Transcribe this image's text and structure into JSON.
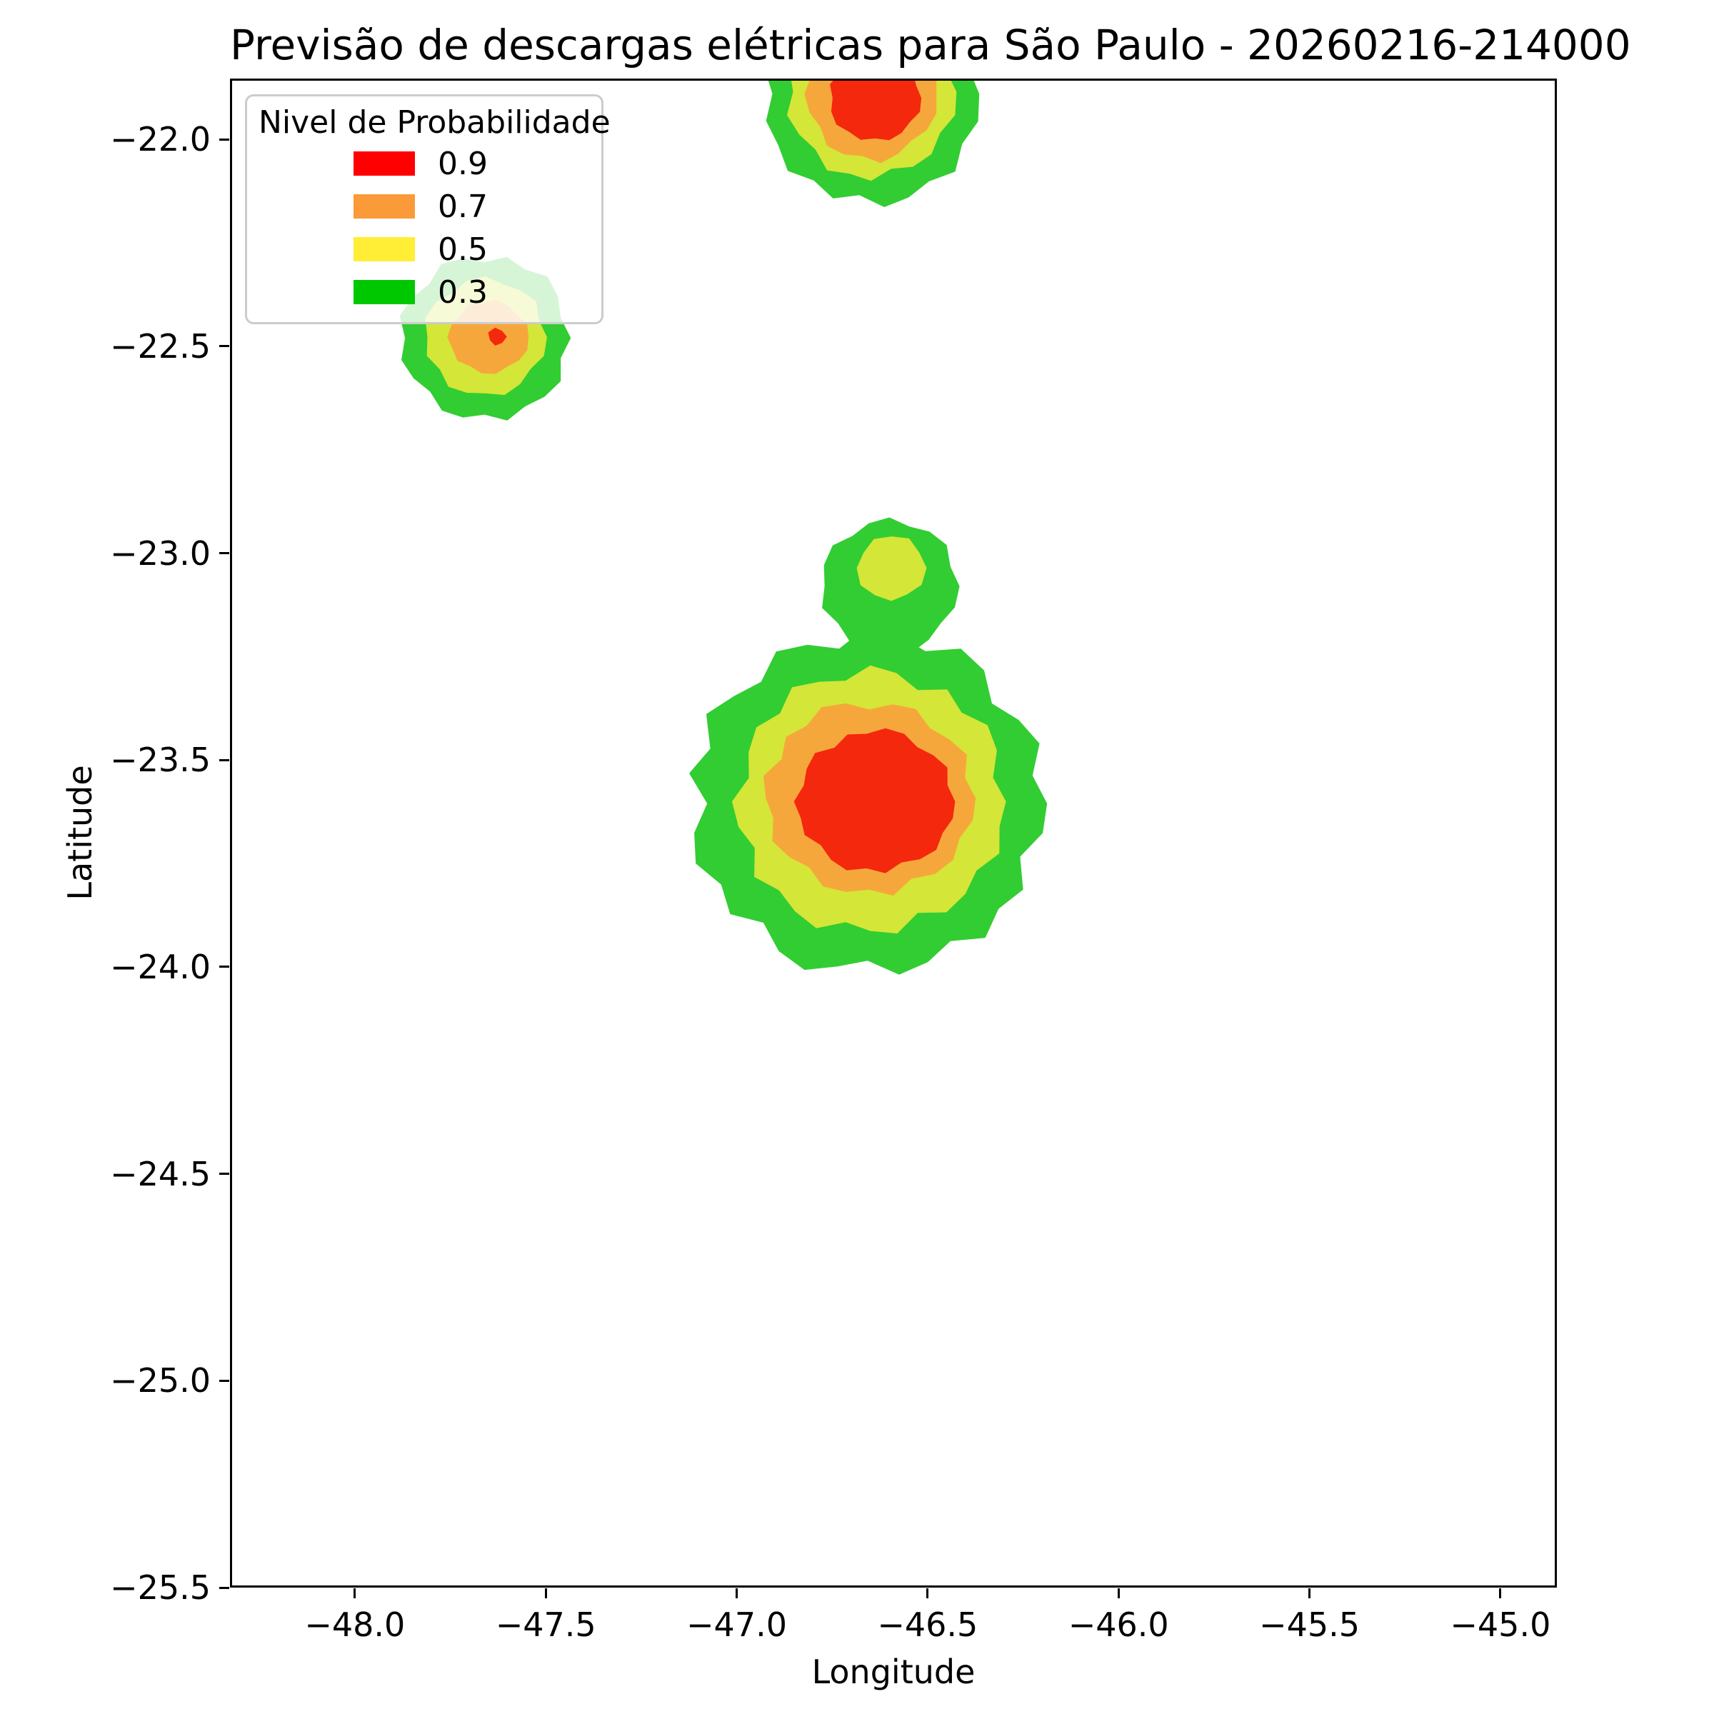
{
  "figure": {
    "title": "Previsão de descargas elétricas para São Paulo - 20260216-214000",
    "xlabel": "Longitude",
    "ylabel": "Latitude"
  },
  "legend": {
    "title": "Nivel de Probabilidade",
    "entries": [
      {
        "label": "0.9",
        "color": "#FE0000"
      },
      {
        "label": "0.7",
        "color": "#FA9A38"
      },
      {
        "label": "0.5",
        "color": "#FFEE35"
      },
      {
        "label": "0.3",
        "color": "#00C800"
      }
    ]
  },
  "chart_data": {
    "type": "filled_contour",
    "title": "Previsão de descargas elétricas para São Paulo - 20260216-214000",
    "xlabel": "Longitude",
    "ylabel": "Latitude",
    "xlim": [
      -48.327,
      -44.852
    ],
    "ylim": [
      -25.5,
      -21.853
    ],
    "grid": false,
    "legend_position": "upper left",
    "x_ticks": {
      "values": [
        -48.0,
        -47.5,
        -47.0,
        -46.5,
        -46.0,
        -45.5,
        -45.0
      ],
      "labels": [
        "−48.0",
        "−47.5",
        "−47.0",
        "−46.5",
        "−46.0",
        "−45.5",
        "−45.0"
      ]
    },
    "y_ticks": {
      "values": [
        -22.0,
        -22.5,
        -23.0,
        -23.5,
        -24.0,
        -24.5,
        -25.0,
        -25.5
      ],
      "labels": [
        "−22.0",
        "−22.5",
        "−23.0",
        "−23.5",
        "−24.0",
        "−24.5",
        "−25.0",
        "−25.5"
      ]
    },
    "levels": [
      0.3,
      0.5,
      0.7,
      0.9
    ],
    "band_colors": {
      "0.3": "#32CD32",
      "0.5": "#D4E637",
      "0.7": "#F6A73C",
      "0.9": "#F4280D"
    },
    "regions": [
      {
        "name": "north-cell-p30",
        "level": 0.3,
        "color": "#32CD32",
        "cx": -46.648,
        "cy": -21.89,
        "rx": 0.275,
        "ry": 0.265,
        "wobble": [
          0.03,
          -0.04,
          0.06,
          0.0,
          -0.05,
          0.04,
          0.08,
          -0.03,
          0.02,
          0.07,
          -0.05,
          0.01,
          0.05,
          -0.06,
          0.03,
          0.0,
          0.06,
          -0.04,
          0.02,
          -0.07,
          0.04,
          0.01,
          -0.03,
          0.07,
          -0.02,
          0.05
        ]
      },
      {
        "name": "north-cell-p50",
        "level": 0.5,
        "color": "#D4E637",
        "cx": -46.648,
        "cy": -21.885,
        "rx": 0.215,
        "ry": 0.205,
        "wobble": [
          0.04,
          -0.05,
          0.02,
          0.07,
          -0.03,
          0.05,
          0.0,
          -0.06,
          0.04,
          0.08,
          -0.02,
          0.03,
          -0.05,
          0.06,
          0.01,
          -0.04,
          0.07,
          0.0,
          0.05,
          -0.06,
          0.02,
          0.04,
          -0.03,
          0.06
        ]
      },
      {
        "name": "north-cell-p70",
        "level": 0.7,
        "color": "#F6A73C",
        "cx": -46.648,
        "cy": -21.89,
        "rx": 0.168,
        "ry": 0.158,
        "wobble": [
          0.02,
          0.06,
          -0.04,
          0.03,
          0.07,
          -0.02,
          0.05,
          -0.05,
          0.01,
          0.06,
          -0.03,
          0.04,
          0.0,
          -0.06,
          0.05,
          0.02,
          -0.04,
          0.07,
          0.01,
          -0.05,
          0.03,
          0.06
        ]
      },
      {
        "name": "north-cell-p90",
        "level": 0.9,
        "color": "#F4280D",
        "cx": -46.638,
        "cy": -21.9,
        "rx": 0.118,
        "ry": 0.103,
        "wobble": [
          0.03,
          -0.04,
          0.05,
          0.01,
          -0.05,
          0.06,
          0.0,
          0.04,
          -0.03,
          0.05,
          -0.06,
          0.02,
          0.06,
          -0.02,
          0.03,
          -0.05,
          0.04,
          0.01,
          -0.04,
          0.05
        ]
      },
      {
        "name": "west-cell-p30",
        "level": 0.3,
        "color": "#32CD32",
        "cx": -47.66,
        "cy": -22.48,
        "rx": 0.215,
        "ry": 0.195,
        "wobble": [
          0.05,
          -0.04,
          0.03,
          0.08,
          -0.02,
          0.04,
          -0.06,
          0.02,
          0.06,
          -0.05,
          0.01,
          0.07,
          -0.03,
          0.05,
          0.0,
          -0.06,
          0.04,
          0.02,
          -0.05,
          0.06,
          -0.02,
          0.03,
          0.07,
          -0.04
        ]
      },
      {
        "name": "west-cell-p50",
        "level": 0.5,
        "color": "#D4E637",
        "cx": -47.658,
        "cy": -22.478,
        "rx": 0.155,
        "ry": 0.14,
        "wobble": [
          0.04,
          -0.05,
          0.06,
          0.0,
          -0.04,
          0.05,
          0.02,
          -0.06,
          0.03,
          0.07,
          -0.02,
          0.04,
          -0.05,
          0.06,
          0.01,
          -0.03,
          0.05,
          0.0,
          -0.06,
          0.04
        ]
      },
      {
        "name": "west-cell-p70",
        "level": 0.7,
        "color": "#F6A73C",
        "cx": -47.65,
        "cy": -22.478,
        "rx": 0.102,
        "ry": 0.086,
        "wobble": [
          0.03,
          0.06,
          -0.04,
          0.02,
          0.07,
          -0.03,
          0.05,
          -0.05,
          0.01,
          0.06,
          -0.02,
          0.04,
          -0.06,
          0.03,
          0.05,
          -0.04,
          0.02,
          0.06
        ]
      },
      {
        "name": "west-cell-p90",
        "level": 0.9,
        "color": "#F4280D",
        "cx": -47.627,
        "cy": -22.477,
        "rx": 0.023,
        "ry": 0.021,
        "wobble": [
          0.1,
          -0.12,
          0.08,
          0.15,
          -0.08,
          0.05,
          -0.1
        ]
      },
      {
        "name": "central-cell-p30",
        "level": 0.3,
        "color": "#32CD32",
        "cx": -46.657,
        "cy": -23.605,
        "rx": 0.452,
        "ry": 0.4,
        "wobble": [
          0.04,
          -0.03,
          0.06,
          0.01,
          -0.06,
          0.05,
          0.08,
          -0.02,
          0.03,
          0.07,
          -0.05,
          0.02,
          0.06,
          -0.04,
          0.01,
          0.08,
          -0.03,
          0.05,
          -0.07,
          0.02,
          0.06,
          -0.02,
          0.04,
          -0.06,
          0.03,
          0.07,
          0.0,
          -0.05,
          0.05,
          0.02,
          -0.04,
          0.06,
          -0.01,
          0.04,
          -0.06,
          0.03
        ]
      },
      {
        "name": "central-north-knob-p30",
        "level": 0.3,
        "color": "#32CD32",
        "cx": -46.6,
        "cy": -23.08,
        "rx": 0.175,
        "ry": 0.16,
        "wobble": [
          0.05,
          -0.04,
          0.06,
          0.02,
          -0.05,
          0.04,
          0.0,
          -0.06,
          0.05,
          0.03,
          -0.03,
          0.06,
          -0.05,
          0.02,
          0.04,
          -0.04,
          0.06,
          0.0,
          -0.05,
          0.03
        ]
      },
      {
        "name": "central-north-knob-p50",
        "level": 0.5,
        "color": "#D4E637",
        "cx": -46.595,
        "cy": -23.036,
        "rx": 0.088,
        "ry": 0.078,
        "wobble": [
          0.05,
          -0.04,
          0.06,
          -0.02,
          0.04,
          -0.05,
          0.03,
          0.06,
          -0.03,
          0.02,
          -0.06,
          0.04
        ]
      },
      {
        "name": "central-cell-p50",
        "level": 0.5,
        "color": "#D4E637",
        "cx": -46.65,
        "cy": -23.6,
        "rx": 0.345,
        "ry": 0.31,
        "wobble": [
          0.03,
          -0.05,
          0.04,
          0.07,
          -0.02,
          0.05,
          -0.06,
          0.02,
          0.06,
          -0.04,
          0.01,
          0.07,
          -0.03,
          0.04,
          0.0,
          -0.06,
          0.05,
          0.02,
          -0.05,
          0.06,
          -0.02,
          0.03,
          0.07,
          -0.04,
          0.01,
          0.05,
          -0.06,
          0.04,
          0.02,
          -0.03,
          0.06,
          0.0
        ]
      },
      {
        "name": "central-cell-p70",
        "level": 0.7,
        "color": "#F6A73C",
        "cx": -46.653,
        "cy": -23.592,
        "rx": 0.268,
        "ry": 0.228,
        "wobble": [
          0.04,
          -0.04,
          0.06,
          0.0,
          -0.05,
          0.05,
          0.02,
          -0.06,
          0.03,
          0.07,
          -0.02,
          0.04,
          -0.05,
          0.06,
          0.01,
          -0.04,
          0.05,
          0.0,
          -0.06,
          0.04,
          0.02,
          -0.03,
          0.06,
          -0.05,
          0.03,
          0.05,
          -0.02,
          0.04
        ]
      },
      {
        "name": "central-cell-p90",
        "level": 0.9,
        "color": "#F4280D",
        "cx": -46.636,
        "cy": -23.6,
        "rx": 0.202,
        "ry": 0.168,
        "wobble": [
          0.03,
          -0.04,
          0.05,
          0.0,
          -0.05,
          0.04,
          0.06,
          -0.02,
          0.03,
          -0.06,
          0.05,
          0.01,
          -0.04,
          0.06,
          0.0,
          0.04,
          -0.05,
          0.02,
          0.06,
          -0.03,
          0.04,
          -0.06,
          0.01,
          0.05,
          -0.02,
          0.03
        ]
      }
    ]
  }
}
